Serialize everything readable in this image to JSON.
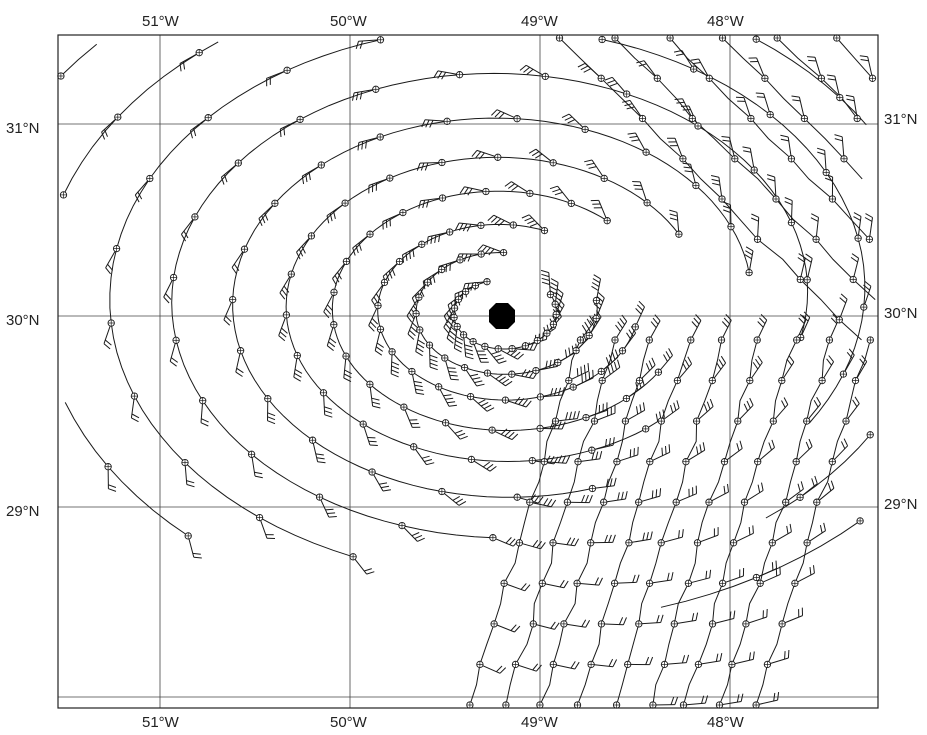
{
  "map": {
    "lon_labels": [
      "51°W",
      "50°W",
      "49°W",
      "48°W"
    ],
    "lat_labels": [
      "31°N",
      "30°N",
      "29°N"
    ],
    "storm_center": {
      "lon": -49.2,
      "lat": 30.02
    },
    "storm_marker_color": "#000000",
    "line_color": "#1a1a1a",
    "features": "Wind barb analysis around a cyclonic circulation; tracks of observation points spiral inward toward the storm center."
  }
}
